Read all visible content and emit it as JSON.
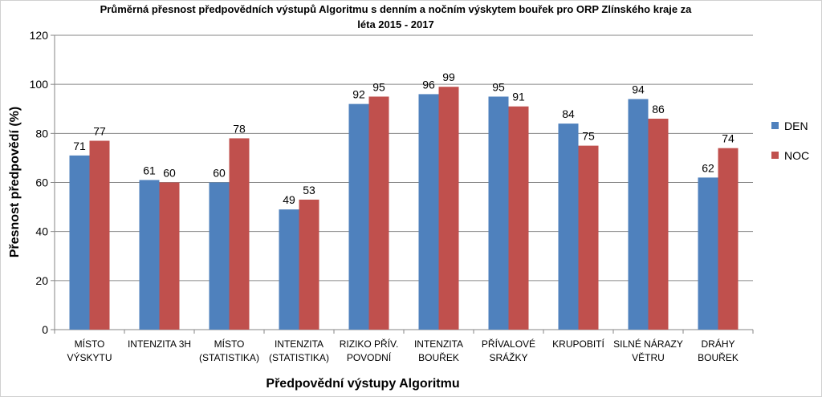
{
  "chart_data": {
    "type": "bar",
    "title_line1": "Průměrná přesnost předpovědních výstupů Algoritmu s denním a nočním výskytem bouřek pro ORP Zlínského kraje za",
    "title_line2": "léta 2015 - 2017",
    "xlabel": "Předpovědní výstupy Algoritmu",
    "ylabel": "Přesnost předpovědí (%)",
    "ylim": [
      0,
      120
    ],
    "yticks": [
      "0",
      "20",
      "40",
      "60",
      "80",
      "100",
      "120"
    ],
    "grid": true,
    "legend_position": "right",
    "categories": [
      [
        "MÍSTO",
        "VÝSKYTU"
      ],
      [
        "INTENZITA 3H"
      ],
      [
        "MÍSTO",
        "(STATISTIKA)"
      ],
      [
        "INTENZITA",
        "(STATISTIKA)"
      ],
      [
        "RIZIKO PŘÍV.",
        "POVODNÍ"
      ],
      [
        "INTENZITA",
        "BOUŘEK"
      ],
      [
        "PŘÍVALOVÉ",
        "SRÁŽKY"
      ],
      [
        "KRUPOBITÍ"
      ],
      [
        "SILNÉ NÁRAZY",
        "VĚTRU"
      ],
      [
        "DRÁHY",
        "BOUŘEK"
      ]
    ],
    "series": [
      {
        "name": "DEN",
        "color": "#4f81bd",
        "values": [
          71,
          61,
          60,
          49,
          92,
          96,
          95,
          84,
          94,
          62
        ]
      },
      {
        "name": "NOC",
        "color": "#c0504d",
        "values": [
          77,
          60,
          78,
          53,
          95,
          99,
          91,
          75,
          86,
          74
        ]
      }
    ]
  }
}
